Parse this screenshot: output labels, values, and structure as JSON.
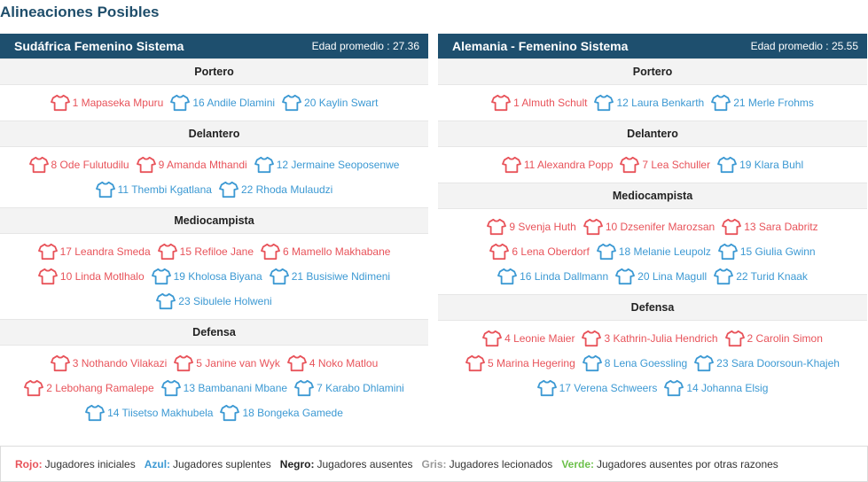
{
  "page_title": "Alineaciones Posibles",
  "colors": {
    "starter": "#e8535a",
    "sub": "#3c99d3",
    "header_bg": "#1e4f6e"
  },
  "teams": [
    {
      "name": "Sudáfrica Femenino Sistema",
      "avg_age_label": "Edad promedio : 27.36",
      "positions": [
        {
          "label": "Portero",
          "rows": [
            [
              {
                "text": "1 Mapaseka Mpuru",
                "status": "starter"
              },
              {
                "text": "16 Andile Dlamini",
                "status": "sub"
              },
              {
                "text": "20 Kaylin Swart",
                "status": "sub"
              }
            ]
          ]
        },
        {
          "label": "Delantero",
          "rows": [
            [
              {
                "text": "8 Ode Fulutudilu",
                "status": "starter"
              },
              {
                "text": "9 Amanda Mthandi",
                "status": "starter"
              },
              {
                "text": "12 Jermaine Seoposenwe",
                "status": "sub"
              }
            ],
            [
              {
                "text": "11 Thembi Kgatlana",
                "status": "sub"
              },
              {
                "text": "22 Rhoda Mulaudzi",
                "status": "sub"
              }
            ]
          ]
        },
        {
          "label": "Mediocampista",
          "rows": [
            [
              {
                "text": "17 Leandra Smeda",
                "status": "starter"
              },
              {
                "text": "15 Refiloe Jane",
                "status": "starter"
              },
              {
                "text": "6 Mamello Makhabane",
                "status": "starter"
              }
            ],
            [
              {
                "text": "10 Linda Motlhalo",
                "status": "starter"
              },
              {
                "text": "19 Kholosa Biyana",
                "status": "sub"
              },
              {
                "text": "21 Busisiwe Ndimeni",
                "status": "sub"
              }
            ],
            [
              {
                "text": "23 Sibulele Holweni",
                "status": "sub"
              }
            ]
          ]
        },
        {
          "label": "Defensa",
          "rows": [
            [
              {
                "text": "3 Nothando Vilakazi",
                "status": "starter"
              },
              {
                "text": "5 Janine van Wyk",
                "status": "starter"
              },
              {
                "text": "4 Noko Matlou",
                "status": "starter"
              }
            ],
            [
              {
                "text": "2 Lebohang Ramalepe",
                "status": "starter"
              },
              {
                "text": "13 Bambanani Mbane",
                "status": "sub"
              },
              {
                "text": "7 Karabo Dhlamini",
                "status": "sub"
              }
            ],
            [
              {
                "text": "14 Tiisetso Makhubela",
                "status": "sub"
              },
              {
                "text": "18 Bongeka Gamede",
                "status": "sub"
              }
            ]
          ]
        }
      ]
    },
    {
      "name": "Alemania - Femenino Sistema",
      "avg_age_label": "Edad promedio : 25.55",
      "positions": [
        {
          "label": "Portero",
          "rows": [
            [
              {
                "text": "1 Almuth Schult",
                "status": "starter"
              },
              {
                "text": "12 Laura Benkarth",
                "status": "sub"
              },
              {
                "text": "21 Merle Frohms",
                "status": "sub"
              }
            ]
          ]
        },
        {
          "label": "Delantero",
          "rows": [
            [
              {
                "text": "11 Alexandra Popp",
                "status": "starter"
              },
              {
                "text": "7 Lea Schuller",
                "status": "starter"
              },
              {
                "text": "19 Klara Buhl",
                "status": "sub"
              }
            ]
          ]
        },
        {
          "label": "Mediocampista",
          "rows": [
            [
              {
                "text": "9 Svenja Huth",
                "status": "starter"
              },
              {
                "text": "10 Dzsenifer Marozsan",
                "status": "starter"
              },
              {
                "text": "13 Sara Dabritz",
                "status": "starter"
              }
            ],
            [
              {
                "text": "6 Lena Oberdorf",
                "status": "starter"
              },
              {
                "text": "18 Melanie Leupolz",
                "status": "sub"
              },
              {
                "text": "15 Giulia Gwinn",
                "status": "sub"
              }
            ],
            [
              {
                "text": "16 Linda Dallmann",
                "status": "sub"
              },
              {
                "text": "20 Lina Magull",
                "status": "sub"
              },
              {
                "text": "22 Turid Knaak",
                "status": "sub"
              }
            ]
          ]
        },
        {
          "label": "Defensa",
          "rows": [
            [
              {
                "text": "4 Leonie Maier",
                "status": "starter"
              },
              {
                "text": "3 Kathrin-Julia Hendrich",
                "status": "starter"
              },
              {
                "text": "2 Carolin Simon",
                "status": "starter"
              }
            ],
            [
              {
                "text": "5 Marina Hegering",
                "status": "starter"
              },
              {
                "text": "8 Lena Goessling",
                "status": "sub"
              },
              {
                "text": "23 Sara Doorsoun-Khajeh",
                "status": "sub"
              }
            ],
            [
              {
                "text": "17 Verena Schweers",
                "status": "sub"
              },
              {
                "text": "14 Johanna Elsig",
                "status": "sub"
              }
            ]
          ]
        }
      ]
    }
  ],
  "legend": [
    {
      "key": "Rojo:",
      "desc": "Jugadores iniciales",
      "color": "#e8535a"
    },
    {
      "key": "Azul:",
      "desc": "Jugadores suplentes",
      "color": "#3c99d3"
    },
    {
      "key": "Negro:",
      "desc": "Jugadores ausentes",
      "color": "#222222"
    },
    {
      "key": "Gris:",
      "desc": "Jugadores lecionados",
      "color": "#9a9a9a"
    },
    {
      "key": "Verde:",
      "desc": "Jugadores ausentes por otras razones",
      "color": "#6cc04a"
    }
  ]
}
